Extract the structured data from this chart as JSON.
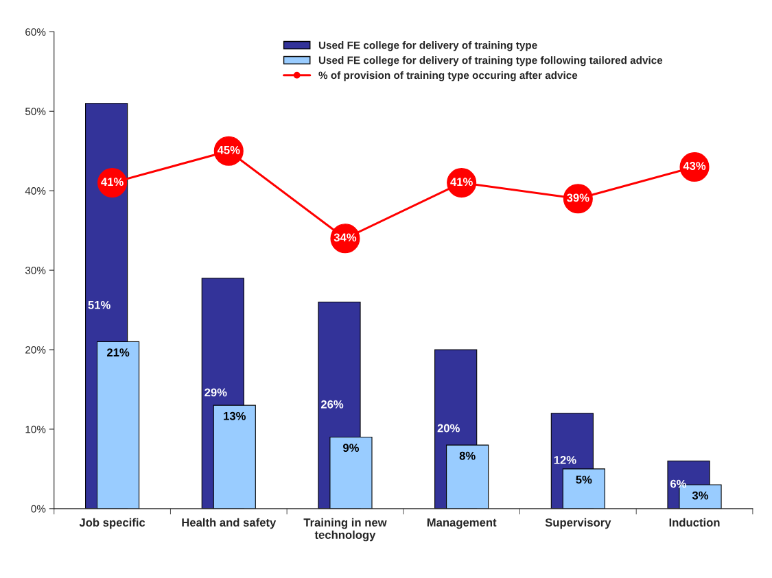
{
  "chart_data": {
    "type": "bar",
    "categories": [
      "Job specific",
      "Health and safety",
      "Training in new\ntechnology",
      "Management",
      "Supervisory",
      "Induction"
    ],
    "series": [
      {
        "name": "Used FE college for delivery of training type",
        "color": "#333399",
        "values": [
          51,
          29,
          26,
          20,
          12,
          6
        ],
        "value_labels": [
          "51%",
          "29%",
          "26%",
          "20%",
          "12%",
          "6%"
        ]
      },
      {
        "name": "Used FE college for delivery of training type following tailored advice",
        "color": "#99ccff",
        "values": [
          21,
          13,
          9,
          8,
          5,
          3
        ],
        "value_labels": [
          "21%",
          "13%",
          "9%",
          "8%",
          "5%",
          "3%"
        ]
      },
      {
        "name": "% of provision of training type occuring after advice",
        "type": "line",
        "color": "#ff0000",
        "values": [
          41,
          45,
          34,
          41,
          39,
          43
        ],
        "value_labels": [
          "41%",
          "45%",
          "34%",
          "41%",
          "39%",
          "43%"
        ]
      }
    ],
    "ylim": [
      0,
      60
    ],
    "yticks": [
      {
        "value": 0,
        "label": "0%"
      },
      {
        "value": 10,
        "label": "10%"
      },
      {
        "value": 20,
        "label": "20%"
      },
      {
        "value": 30,
        "label": "30%"
      },
      {
        "value": 40,
        "label": "40%"
      },
      {
        "value": 50,
        "label": "50%"
      },
      {
        "value": 60,
        "label": "60%"
      }
    ],
    "legend": "top",
    "grid": false,
    "marker": "circle",
    "line_style": "solid"
  }
}
